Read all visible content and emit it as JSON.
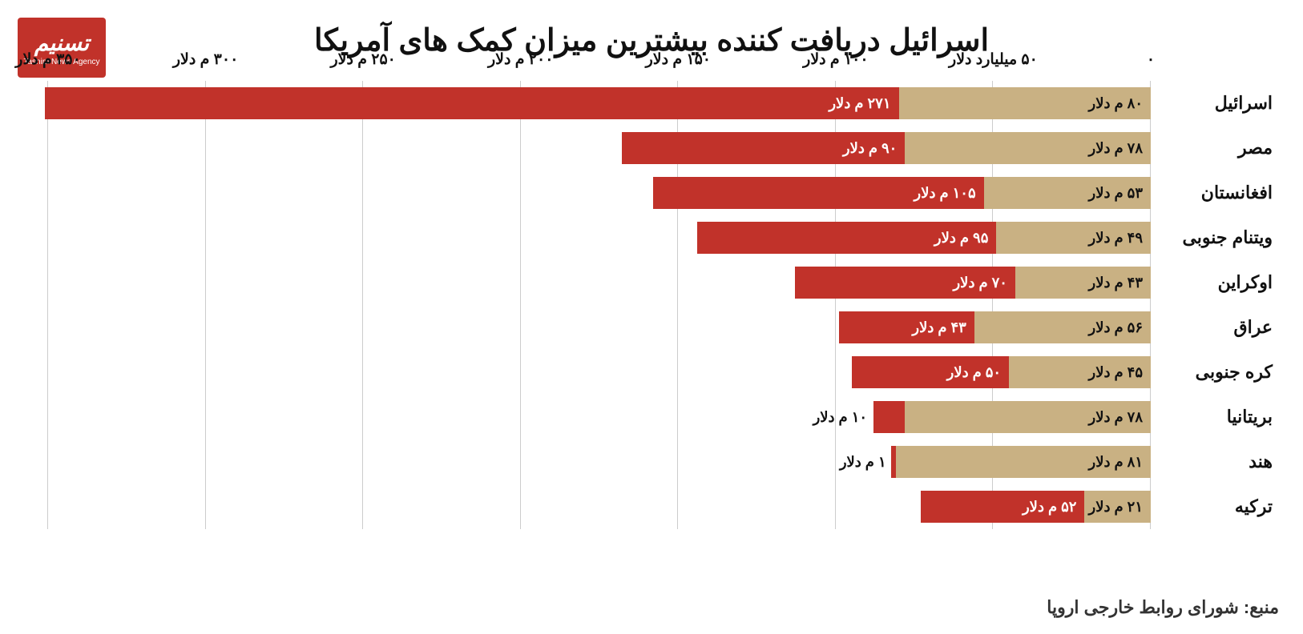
{
  "title": "اسرائیل دریافت کننده بیشترین میزان کمک های آمریکا",
  "logo": {
    "brand": "تسنیم",
    "sub": "Tasnim News Agency"
  },
  "source": "منبع: شورای روابط خارجی اروپا",
  "chart": {
    "type": "stacked-horizontal-bar",
    "xmax": 350,
    "xtick_step": 50,
    "tick_unit_first": "میلیارد دلار",
    "tick_unit_rest": "م دلار",
    "label_unit": "م دلار",
    "grid_color": "#cccccc",
    "series_colors": {
      "a": "#c9b183",
      "b": "#c1322a"
    },
    "text_color_on_a": "#111111",
    "text_color_on_b": "#ffffff",
    "text_color_outside": "#111111",
    "categories": [
      {
        "name": "اسرائیل",
        "a": 80,
        "b": 271
      },
      {
        "name": "مصر",
        "a": 78,
        "b": 90
      },
      {
        "name": "افغانستان",
        "a": 53,
        "b": 105
      },
      {
        "name": "ویتنام جنوبی",
        "a": 49,
        "b": 95
      },
      {
        "name": "اوکراین",
        "a": 43,
        "b": 70
      },
      {
        "name": "عراق",
        "a": 56,
        "b": 43
      },
      {
        "name": "کره جنوبی",
        "a": 45,
        "b": 50
      },
      {
        "name": "بریتانیا",
        "a": 78,
        "b": 10
      },
      {
        "name": "هند",
        "a": 81,
        "b": 1
      },
      {
        "name": "ترکیه",
        "a": 21,
        "b": 52
      }
    ],
    "xticks": [
      0,
      50,
      100,
      150,
      200,
      250,
      300,
      350
    ]
  }
}
